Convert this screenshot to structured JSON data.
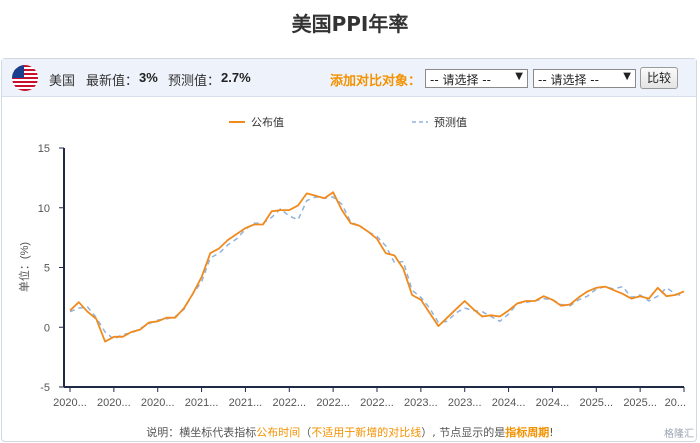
{
  "page": {
    "title": "美国PPI年率"
  },
  "infobar": {
    "country": "美国",
    "latest_label": "最新值：",
    "latest_value": "3%",
    "forecast_label": "预测值：",
    "forecast_value": "2.7%",
    "compare_label": "添加对比对象：",
    "select1": "-- 请选择 --",
    "select2": "-- 请选择 --",
    "compare_button": "比较"
  },
  "footnote": {
    "p1": "说明：横坐标代表指标",
    "p2": "公布时间",
    "p3": "（",
    "p4": "不适用于新增的对比线",
    "p5": "）, 节点显示的是",
    "p6": "指标周期",
    "p7": "!"
  },
  "watermark": "格隆汇",
  "colors": {
    "published": "#f08a1c",
    "forecast": "#8fb3de",
    "axis": "#1f2a44",
    "accent": "#f39200"
  },
  "chart_data": {
    "type": "line",
    "title": "",
    "xlabel": "",
    "ylabel": "单位：(%)",
    "ylim": [
      -5,
      15
    ],
    "yticks": [
      -5,
      0,
      5,
      10,
      15
    ],
    "grid": false,
    "legend_position": "top-center",
    "x_tick_labels": [
      "2020...",
      "2020...",
      "2020...",
      "2021...",
      "2021...",
      "2022...",
      "2022...",
      "2022...",
      "2023...",
      "2023...",
      "2024...",
      "2024...",
      "2025...",
      "2025...",
      "20..."
    ],
    "series": [
      {
        "name": "公布值",
        "values": [
          1.4,
          2.1,
          1.3,
          0.7,
          -1.2,
          -0.8,
          -0.8,
          -0.4,
          -0.2,
          0.4,
          0.5,
          0.8,
          0.8,
          1.6,
          2.8,
          4.2,
          6.2,
          6.6,
          7.3,
          7.8,
          8.3,
          8.6,
          8.6,
          9.7,
          9.8,
          9.8,
          10.2,
          11.2,
          11.0,
          10.8,
          11.3,
          9.8,
          8.7,
          8.5,
          8.0,
          7.4,
          6.2,
          6.0,
          4.9,
          2.7,
          2.3,
          1.2,
          0.1,
          0.8,
          1.5,
          2.2,
          1.5,
          0.9,
          1.0,
          0.9,
          1.4,
          2.0,
          2.2,
          2.2,
          2.6,
          2.3,
          1.8,
          1.9,
          2.5,
          3.0,
          3.3,
          3.4,
          3.1,
          2.8,
          2.4,
          2.6,
          2.4,
          3.3,
          2.6,
          2.7,
          3.0
        ]
      },
      {
        "name": "预测值",
        "values": [
          1.3,
          1.6,
          1.7,
          0.8,
          -0.4,
          -1.0,
          -0.6,
          -0.5,
          -0.1,
          0.3,
          0.6,
          0.7,
          0.9,
          1.5,
          2.8,
          3.8,
          5.8,
          6.2,
          6.9,
          7.4,
          8.2,
          8.7,
          8.7,
          9.2,
          9.9,
          9.3,
          9.0,
          10.6,
          10.9,
          10.8,
          10.9,
          10.3,
          8.8,
          8.5,
          8.0,
          7.6,
          6.8,
          5.4,
          5.5,
          3.1,
          2.5,
          1.6,
          0.4,
          0.5,
          1.2,
          1.6,
          1.4,
          1.3,
          0.9,
          0.5,
          1.1,
          2.0,
          2.1,
          2.2,
          2.4,
          2.3,
          1.9,
          1.8,
          2.3,
          2.6,
          3.2,
          3.4,
          3.2,
          3.4,
          2.5,
          2.7,
          2.2,
          2.6,
          3.3,
          2.8,
          2.6
        ]
      }
    ]
  }
}
